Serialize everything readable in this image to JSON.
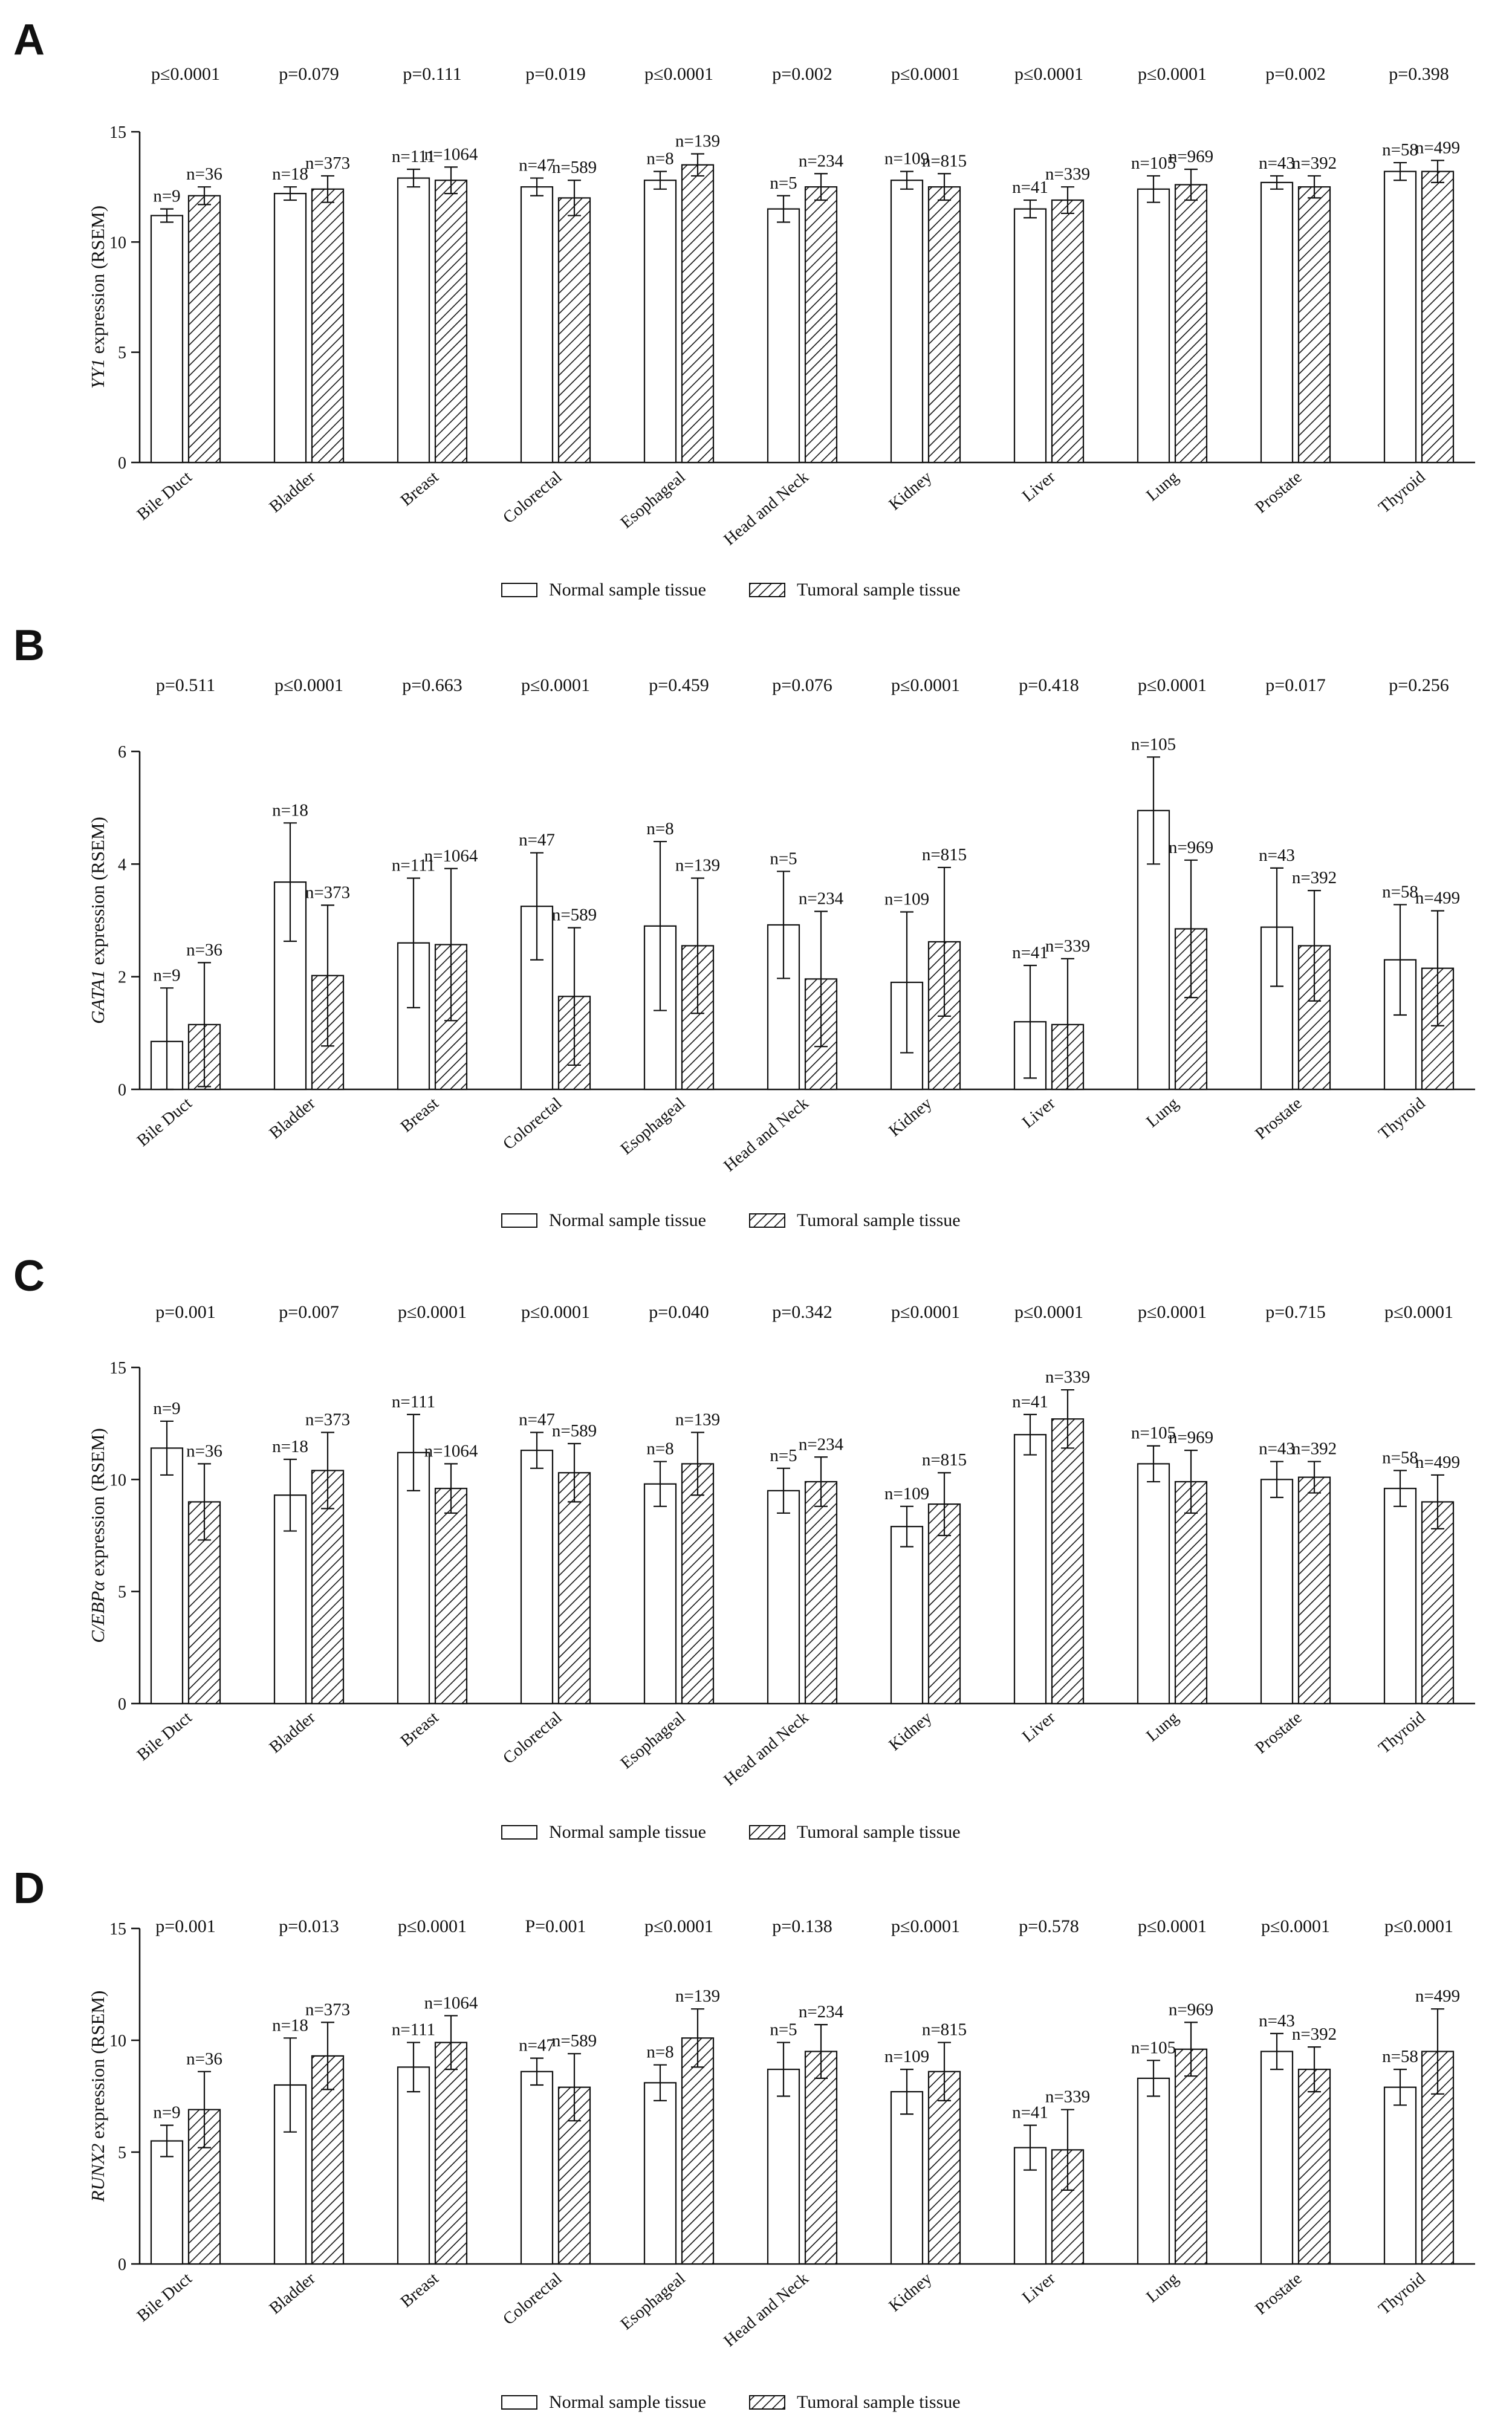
{
  "legend": {
    "normal": "Normal sample tissue",
    "tumoral": "Tumoral sample tissue"
  },
  "chart_data": [
    {
      "panel": "A",
      "type": "bar",
      "ylabel": "YY1 expression (RSEM)",
      "ylabel_gene": "YY1",
      "ylabel_rest": " expression (RSEM)",
      "ylim": [
        0,
        15
      ],
      "yticks": [
        0,
        5,
        10,
        15
      ],
      "categories": [
        "Bile Duct",
        "Bladder",
        "Breast",
        "Colorectal",
        "Esophageal",
        "Head and Neck",
        "Kidney",
        "Liver",
        "Lung",
        "Prostate",
        "Thyroid"
      ],
      "pvalues": [
        "p≤0.0001",
        "p=0.079",
        "p=0.111",
        "p=0.019",
        "p≤0.0001",
        "p=0.002",
        "p≤0.0001",
        "p≤0.0001",
        "p≤0.0001",
        "p=0.002",
        "p=0.398"
      ],
      "series": [
        {
          "name": "Normal sample tissue",
          "values": [
            11.2,
            12.2,
            12.9,
            12.5,
            12.8,
            11.5,
            12.8,
            11.5,
            12.4,
            12.7,
            13.2
          ],
          "errors": [
            0.3,
            0.3,
            0.4,
            0.4,
            0.4,
            0.6,
            0.4,
            0.4,
            0.6,
            0.3,
            0.4
          ],
          "n": [
            "n=9",
            "n=18",
            "n=111",
            "n=47",
            "n=8",
            "n=5",
            "n=109",
            "n=41",
            "n=105",
            "n=43",
            "n=58"
          ]
        },
        {
          "name": "Tumoral sample tissue",
          "values": [
            12.1,
            12.4,
            12.8,
            12.0,
            13.5,
            12.5,
            12.5,
            11.9,
            12.6,
            12.5,
            13.2
          ],
          "errors": [
            0.4,
            0.6,
            0.6,
            0.8,
            0.5,
            0.6,
            0.6,
            0.6,
            0.7,
            0.5,
            0.5
          ],
          "n": [
            "n=36",
            "n=373",
            "n=1064",
            "n=589",
            "n=139",
            "n=234",
            "n=815",
            "n=339",
            "n=969",
            "n=392",
            "n=499"
          ]
        }
      ]
    },
    {
      "panel": "B",
      "type": "bar",
      "ylabel": "GATA1 expression (RSEM)",
      "ylabel_gene": "GATA1",
      "ylabel_rest": " expression (RSEM)",
      "ylim": [
        0,
        6
      ],
      "yticks": [
        0,
        2,
        4,
        6
      ],
      "categories": [
        "Bile Duct",
        "Bladder",
        "Breast",
        "Colorectal",
        "Esophageal",
        "Head and Neck",
        "Kidney",
        "Liver",
        "Lung",
        "Prostate",
        "Thyroid"
      ],
      "pvalues": [
        "p=0.511",
        "p≤0.0001",
        "p=0.663",
        "p≤0.0001",
        "p=0.459",
        "p=0.076",
        "p≤0.0001",
        "p=0.418",
        "p≤0.0001",
        "p=0.017",
        "p=0.256"
      ],
      "series": [
        {
          "name": "Normal sample tissue",
          "values": [
            0.85,
            3.68,
            2.6,
            3.25,
            2.9,
            2.92,
            1.9,
            1.2,
            4.95,
            2.88,
            2.3
          ],
          "errors": [
            0.95,
            1.05,
            1.15,
            0.95,
            1.5,
            0.95,
            1.25,
            1.0,
            0.95,
            1.05,
            0.98
          ],
          "n": [
            "n=9",
            "n=18",
            "n=111",
            "n=47",
            "n=8",
            "n=5",
            "n=109",
            "n=41",
            "n=105",
            "n=43",
            "n=58"
          ]
        },
        {
          "name": "Tumoral sample tissue",
          "values": [
            1.15,
            2.02,
            2.57,
            1.65,
            2.55,
            1.96,
            2.62,
            1.15,
            2.85,
            2.55,
            2.15
          ],
          "errors": [
            1.1,
            1.25,
            1.35,
            1.22,
            1.2,
            1.2,
            1.32,
            1.17,
            1.22,
            0.98,
            1.02
          ],
          "n": [
            "n=36",
            "n=373",
            "n=1064",
            "n=589",
            "n=139",
            "n=234",
            "n=815",
            "n=339",
            "n=969",
            "n=392",
            "n=499"
          ]
        }
      ]
    },
    {
      "panel": "C",
      "type": "bar",
      "ylabel": "C/EBPα expression (RSEM)",
      "ylabel_gene": "C/EBPα",
      "ylabel_rest": " expression (RSEM)",
      "ylim": [
        0,
        15
      ],
      "yticks": [
        0,
        5,
        10,
        15
      ],
      "categories": [
        "Bile Duct",
        "Bladder",
        "Breast",
        "Colorectal",
        "Esophageal",
        "Head and Neck",
        "Kidney",
        "Liver",
        "Lung",
        "Prostate",
        "Thyroid"
      ],
      "pvalues": [
        "p=0.001",
        "p=0.007",
        "p≤0.0001",
        "p≤0.0001",
        "p=0.040",
        "p=0.342",
        "p≤0.0001",
        "p≤0.0001",
        "p≤0.0001",
        "p=0.715",
        "p≤0.0001"
      ],
      "series": [
        {
          "name": "Normal sample tissue",
          "values": [
            11.4,
            9.3,
            11.2,
            11.3,
            9.8,
            9.5,
            7.9,
            12.0,
            10.7,
            10.0,
            9.6
          ],
          "errors": [
            1.2,
            1.6,
            1.7,
            0.8,
            1.0,
            1.0,
            0.9,
            0.9,
            0.8,
            0.8,
            0.8
          ],
          "n": [
            "n=9",
            "n=18",
            "n=111",
            "n=47",
            "n=8",
            "n=5",
            "n=109",
            "n=41",
            "n=105",
            "n=43",
            "n=58"
          ]
        },
        {
          "name": "Tumoral sample tissue",
          "values": [
            9.0,
            10.4,
            9.6,
            10.3,
            10.7,
            9.9,
            8.9,
            12.7,
            9.9,
            10.1,
            9.0
          ],
          "errors": [
            1.7,
            1.7,
            1.1,
            1.3,
            1.4,
            1.1,
            1.4,
            1.3,
            1.4,
            0.7,
            1.2
          ],
          "n": [
            "n=36",
            "n=373",
            "n=1064",
            "n=589",
            "n=139",
            "n=234",
            "n=815",
            "n=339",
            "n=969",
            "n=392",
            "n=499"
          ]
        }
      ]
    },
    {
      "panel": "D",
      "type": "bar",
      "ylabel": "RUNX2 expression (RSEM)",
      "ylabel_gene": "RUNX2",
      "ylabel_rest": " expression (RSEM)",
      "ylim": [
        0,
        15
      ],
      "yticks": [
        0,
        5,
        10,
        15
      ],
      "categories": [
        "Bile Duct",
        "Bladder",
        "Breast",
        "Colorectal",
        "Esophageal",
        "Head and Neck",
        "Kidney",
        "Liver",
        "Lung",
        "Prostate",
        "Thyroid"
      ],
      "pvalues": [
        "p=0.001",
        "p=0.013",
        "p≤0.0001",
        "P=0.001",
        "p≤0.0001",
        "p=0.138",
        "p≤0.0001",
        "p=0.578",
        "p≤0.0001",
        "p≤0.0001",
        "p≤0.0001"
      ],
      "series": [
        {
          "name": "Normal sample tissue",
          "values": [
            5.5,
            8.0,
            8.8,
            8.6,
            8.1,
            8.7,
            7.7,
            5.2,
            8.3,
            9.5,
            7.9
          ],
          "errors": [
            0.7,
            2.1,
            1.1,
            0.6,
            0.8,
            1.2,
            1.0,
            1.0,
            0.8,
            0.8,
            0.8
          ],
          "n": [
            "n=9",
            "n=18",
            "n=111",
            "n=47",
            "n=8",
            "n=5",
            "n=109",
            "n=41",
            "n=105",
            "n=43",
            "n=58"
          ]
        },
        {
          "name": "Tumoral sample tissue",
          "values": [
            6.9,
            9.3,
            9.9,
            7.9,
            10.1,
            9.5,
            8.6,
            5.1,
            9.6,
            8.7,
            9.5
          ],
          "errors": [
            1.7,
            1.5,
            1.2,
            1.5,
            1.3,
            1.2,
            1.3,
            1.8,
            1.2,
            1.0,
            1.9
          ],
          "n": [
            "n=36",
            "n=373",
            "n=1064",
            "n=589",
            "n=139",
            "n=234",
            "n=815",
            "n=339",
            "n=969",
            "n=392",
            "n=499"
          ]
        }
      ]
    }
  ]
}
